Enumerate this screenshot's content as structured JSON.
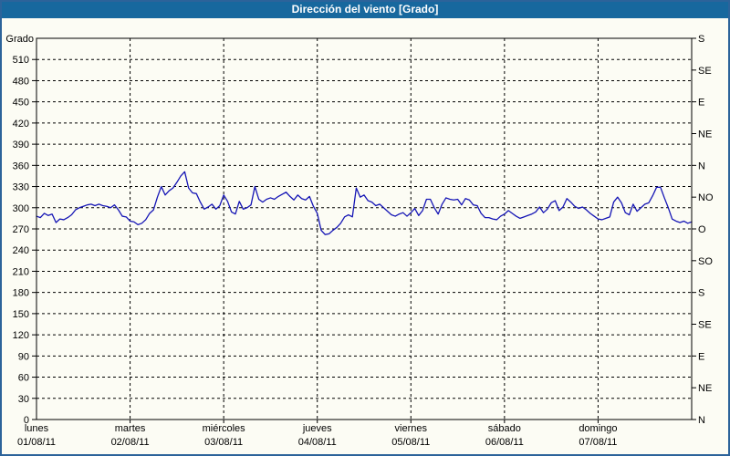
{
  "title": "Dirección del viento [Grado]",
  "colors": {
    "titlebar_bg": "#17689e",
    "title_text": "#ffffff",
    "canvas_bg": "#fcfcf4",
    "outer_border": "#2c639a",
    "axis": "#000000",
    "grid": "#000000",
    "line": "#1515b5"
  },
  "chart_data": {
    "type": "line",
    "title": "Dirección del viento [Grado]",
    "ylabel": "Grado",
    "grid": "dashed",
    "y_axis_left": {
      "axis_title": "Grado",
      "min": 0,
      "max": 540,
      "tick_step": 30,
      "tick_labels": [
        0,
        30,
        60,
        90,
        120,
        150,
        180,
        210,
        240,
        270,
        300,
        330,
        360,
        390,
        420,
        450,
        480,
        510
      ]
    },
    "y_axis_right": {
      "tick_step_degrees": 45,
      "labels_bottom_to_top": [
        "N",
        "NE",
        "E",
        "SE",
        "S",
        "SO",
        "O",
        "NO",
        "N",
        "NE",
        "E",
        "SE",
        "S"
      ]
    },
    "x_axis_days": [
      {
        "name": "lunes",
        "date": "01/08/11"
      },
      {
        "name": "martes",
        "date": "02/08/11"
      },
      {
        "name": "miércoles",
        "date": "03/08/11"
      },
      {
        "name": "jueves",
        "date": "04/08/11"
      },
      {
        "name": "viernes",
        "date": "05/08/11"
      },
      {
        "name": "sábado",
        "date": "06/08/11"
      },
      {
        "name": "domingo",
        "date": "07/08/11"
      }
    ],
    "series": [
      {
        "name": "Dirección del viento",
        "unit": "Grado",
        "sampling": "hourly (24 per day, 7 days, plus closing point)",
        "values": [
          288,
          286,
          292,
          289,
          291,
          279,
          284,
          283,
          286,
          290,
          297,
          300,
          302,
          304,
          305,
          303,
          305,
          303,
          302,
          300,
          304,
          297,
          288,
          287,
          281,
          280,
          276,
          278,
          283,
          292,
          297,
          315,
          330,
          318,
          324,
          328,
          336,
          345,
          351,
          328,
          321,
          320,
          308,
          298,
          301,
          305,
          298,
          303,
          318,
          309,
          294,
          291,
          309,
          298,
          300,
          304,
          330,
          312,
          308,
          312,
          314,
          312,
          316,
          319,
          322,
          316,
          311,
          318,
          313,
          311,
          316,
          302,
          292,
          268,
          262,
          263,
          268,
          272,
          278,
          287,
          290,
          287,
          328,
          315,
          318,
          310,
          308,
          303,
          305,
          300,
          295,
          290,
          288,
          291,
          293,
          288,
          293,
          299,
          289,
          296,
          312,
          312,
          300,
          291,
          305,
          314,
          312,
          311,
          312,
          304,
          313,
          311,
          304,
          303,
          292,
          286,
          286,
          284,
          283,
          288,
          291,
          296,
          292,
          288,
          285,
          287,
          289,
          291,
          294,
          301,
          293,
          298,
          307,
          310,
          296,
          301,
          313,
          308,
          302,
          299,
          301,
          297,
          292,
          288,
          284,
          283,
          285,
          287,
          308,
          315,
          307,
          293,
          290,
          305,
          295,
          300,
          305,
          307,
          317,
          329,
          329,
          314,
          300,
          284,
          281,
          279,
          281,
          278,
          280
        ]
      }
    ]
  }
}
